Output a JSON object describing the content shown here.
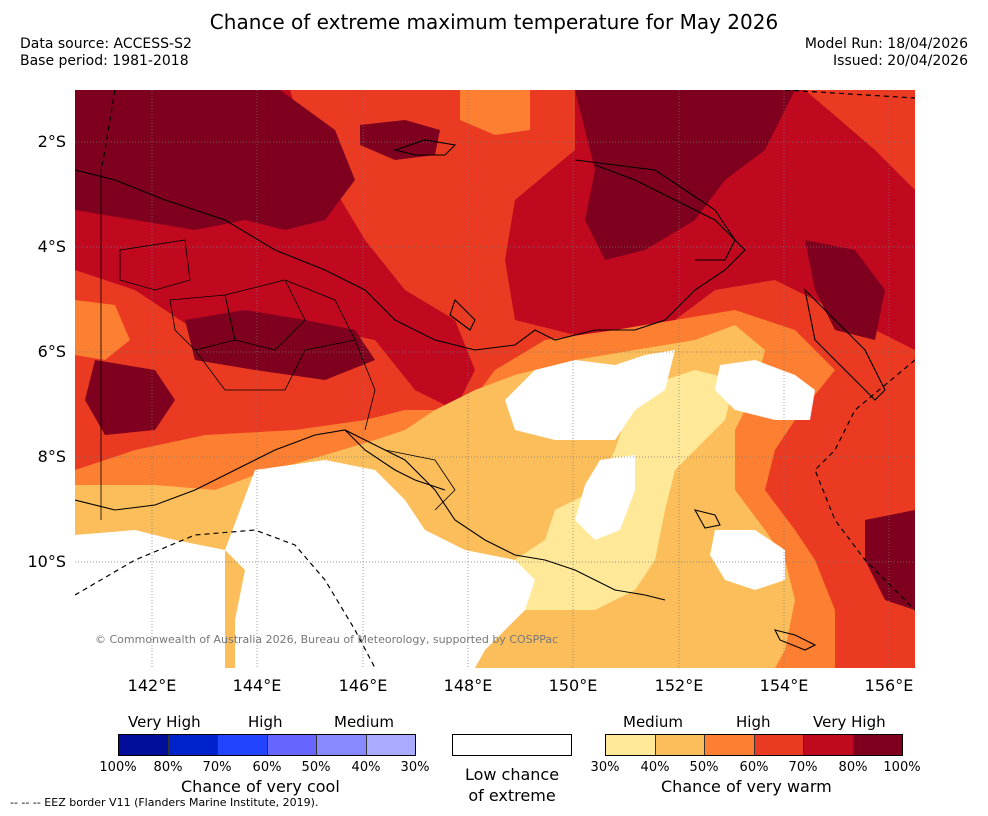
{
  "title": "Chance of extreme maximum temperature for May 2026",
  "meta": {
    "data_source": "Data source: ACCESS-S2",
    "base_period": "Base period: 1981-2018",
    "model_run": "Model Run: 18/04/2026",
    "issued": "Issued: 20/04/2026"
  },
  "map": {
    "lat_labels": [
      "2°S",
      "4°S",
      "6°S",
      "8°S",
      "10°S"
    ],
    "lon_labels": [
      "142°E",
      "144°E",
      "146°E",
      "148°E",
      "150°E",
      "152°E",
      "154°E",
      "156°E"
    ],
    "copyright": "© Commonwealth of Australia 2026, Bureau of Meteorology, supported by COSPPac"
  },
  "legend": {
    "cool": {
      "levels": [
        "Very High",
        "High",
        "Medium"
      ],
      "ticks": [
        "100%",
        "80%",
        "70%",
        "60%",
        "50%",
        "40%",
        "30%"
      ],
      "caption": "Chance of very cool",
      "colors": [
        "#000d99",
        "#0022cc",
        "#2244ff",
        "#6666ff",
        "#8888ff",
        "#aaaaff"
      ]
    },
    "low": {
      "caption_line1": "Low chance",
      "caption_line2": "of extreme",
      "color": "#ffffff"
    },
    "warm": {
      "levels": [
        "Medium",
        "High",
        "Very High"
      ],
      "ticks": [
        "30%",
        "40%",
        "50%",
        "60%",
        "70%",
        "80%",
        "100%"
      ],
      "caption": "Chance of very warm",
      "colors": [
        "#ffe999",
        "#fcbe5a",
        "#fd7f31",
        "#ea3a22",
        "#c0081f",
        "#7f001e"
      ]
    }
  },
  "eez_note": "--  --  -- EEZ border V11 (Flanders Marine Institute, 2019)."
}
